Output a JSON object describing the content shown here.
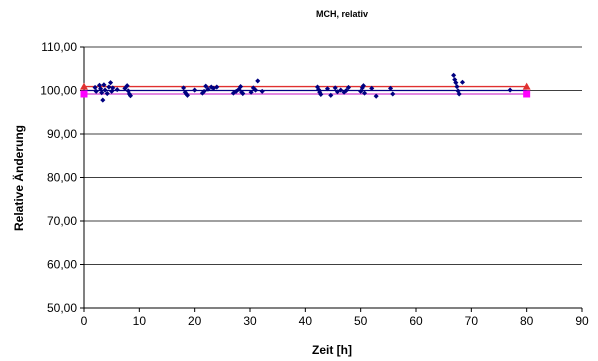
{
  "chart_data": {
    "type": "scatter",
    "title": "MCH, relativ",
    "xlabel": "Zeit [h]",
    "ylabel": "Relative Änderung",
    "xlim": [
      0,
      90
    ],
    "ylim": [
      50,
      110
    ],
    "x_ticks": [
      "0",
      "10",
      "20",
      "30",
      "40",
      "50",
      "60",
      "70",
      "80",
      "90"
    ],
    "x_tick_values": [
      0,
      10,
      20,
      30,
      40,
      50,
      60,
      70,
      80,
      90
    ],
    "y_ticks": [
      "50,00",
      "60,00",
      "70,00",
      "80,00",
      "90,00",
      "100,00",
      "110,00"
    ],
    "y_tick_values": [
      50,
      60,
      70,
      80,
      90,
      100,
      110
    ],
    "grid": "horizontal",
    "reference_lines": [
      {
        "y": 100.9,
        "color": "#e03030"
      },
      {
        "y": 100.0,
        "color": "#000080"
      },
      {
        "y": 99.2,
        "color": "#d040d0"
      }
    ],
    "end_markers": [
      {
        "x": 0,
        "y": 100.9,
        "shape": "triangle",
        "color": "#e03030"
      },
      {
        "x": 80,
        "y": 100.9,
        "shape": "triangle",
        "color": "#e03030"
      },
      {
        "x": 0,
        "y": 99.2,
        "shape": "square",
        "color": "#ff00ff"
      },
      {
        "x": 80,
        "y": 99.2,
        "shape": "square",
        "color": "#ff00ff"
      }
    ],
    "series": [
      {
        "color": "#000080",
        "points": [
          [
            2,
            100.7
          ],
          [
            2.2,
            99.8
          ],
          [
            2.8,
            101.2
          ],
          [
            3,
            100.4
          ],
          [
            3.2,
            99.5
          ],
          [
            3.4,
            97.8
          ],
          [
            3.6,
            101.3
          ],
          [
            3.8,
            100.1
          ],
          [
            4.2,
            99.3
          ],
          [
            4.5,
            100.8
          ],
          [
            4.8,
            101.8
          ],
          [
            5,
            99.8
          ],
          [
            5.2,
            100.6
          ],
          [
            6,
            100.2
          ],
          [
            7.4,
            100.5
          ],
          [
            7.8,
            101.1
          ],
          [
            8,
            99.9
          ],
          [
            8.2,
            99.2
          ],
          [
            8.4,
            98.8
          ],
          [
            18,
            100.6
          ],
          [
            18.3,
            99.6
          ],
          [
            18.5,
            99.2
          ],
          [
            18.7,
            98.9
          ],
          [
            20,
            100.1
          ],
          [
            21.4,
            99.4
          ],
          [
            21.7,
            99.8
          ],
          [
            22,
            101
          ],
          [
            22.4,
            100.3
          ],
          [
            23,
            100.8
          ],
          [
            23.4,
            100.5
          ],
          [
            24,
            100.8
          ],
          [
            27,
            99.4
          ],
          [
            27.5,
            99.8
          ],
          [
            28,
            100.3
          ],
          [
            28.3,
            100.9
          ],
          [
            28.5,
            99.6
          ],
          [
            28.7,
            99.3
          ],
          [
            30.2,
            99.6
          ],
          [
            30.6,
            100.6
          ],
          [
            31,
            100.1
          ],
          [
            31.4,
            102.2
          ],
          [
            32.2,
            99.8
          ],
          [
            42.2,
            100.8
          ],
          [
            42.4,
            100.2
          ],
          [
            42.6,
            99.6
          ],
          [
            42.8,
            99.1
          ],
          [
            44,
            100.4
          ],
          [
            44.6,
            98.9
          ],
          [
            45.4,
            100.6
          ],
          [
            45.8,
            99.7
          ],
          [
            46.4,
            100.1
          ],
          [
            47,
            99.6
          ],
          [
            47.4,
            100
          ],
          [
            47.8,
            100.7
          ],
          [
            50,
            99.8
          ],
          [
            50.3,
            100.6
          ],
          [
            50.5,
            101.1
          ],
          [
            50.7,
            99.4
          ],
          [
            52,
            100.5
          ],
          [
            52.8,
            98.7
          ],
          [
            55.4,
            100.5
          ],
          [
            55.8,
            99.2
          ],
          [
            66.8,
            103.5
          ],
          [
            67,
            102.5
          ],
          [
            67.2,
            101.8
          ],
          [
            67.4,
            100.9
          ],
          [
            67.6,
            99.9
          ],
          [
            67.8,
            99.2
          ],
          [
            68.4,
            101.9
          ],
          [
            77,
            100.1
          ]
        ]
      }
    ]
  }
}
